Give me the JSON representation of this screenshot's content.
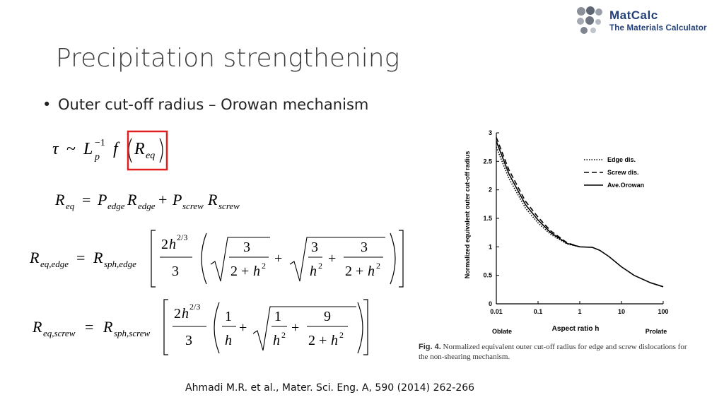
{
  "logo": {
    "line1": "MatCalc",
    "line2": "The Materials Calculator"
  },
  "slide": {
    "title": "Precipitation strengthening",
    "bullet": "Outer cut-off radius – Orowan mechanism",
    "citation": "Ahmadi M.R. et al., Mater. Sci. Eng. A, 590 (2014) 262-266"
  },
  "figure": {
    "caption_label": "Fig. 4.",
    "caption_text": "Normalized equivalent outer cut-off radius for edge and screw dislocations for the non-shearing mechanism.",
    "oblate": "Oblate",
    "prolate": "Prolate"
  },
  "chart_data": {
    "type": "line",
    "xlabel": "Aspect ratio h",
    "ylabel": "Normalized equivalent outer cut-off radius",
    "x_scale": "log",
    "xlim": [
      0.01,
      100
    ],
    "ylim": [
      0,
      3
    ],
    "x_ticks": [
      "0.01",
      "0.1",
      "1",
      "10",
      "100"
    ],
    "y_ticks": [
      "0",
      "0.5",
      "1",
      "1.5",
      "2",
      "2.5",
      "3"
    ],
    "legend_position": "top-right",
    "series": [
      {
        "name": "Edge dis.",
        "style": "dotted",
        "x": [
          0.01,
          0.02,
          0.05,
          0.1,
          0.2,
          0.5,
          1
        ],
        "y": [
          2.75,
          2.2,
          1.68,
          1.42,
          1.22,
          1.05,
          1.0
        ]
      },
      {
        "name": "Screw dis.",
        "style": "dashed",
        "x": [
          0.01,
          0.02,
          0.05,
          0.1,
          0.2,
          0.5,
          1
        ],
        "y": [
          2.92,
          2.35,
          1.8,
          1.52,
          1.28,
          1.07,
          1.0
        ]
      },
      {
        "name": "Ave.Orowan",
        "style": "solid",
        "x": [
          0.01,
          0.02,
          0.05,
          0.1,
          0.2,
          0.5,
          1,
          2,
          3,
          5,
          10,
          20,
          50,
          100
        ],
        "y": [
          2.85,
          2.28,
          1.74,
          1.47,
          1.25,
          1.06,
          1.0,
          0.99,
          0.94,
          0.83,
          0.65,
          0.5,
          0.37,
          0.3
        ]
      }
    ]
  }
}
